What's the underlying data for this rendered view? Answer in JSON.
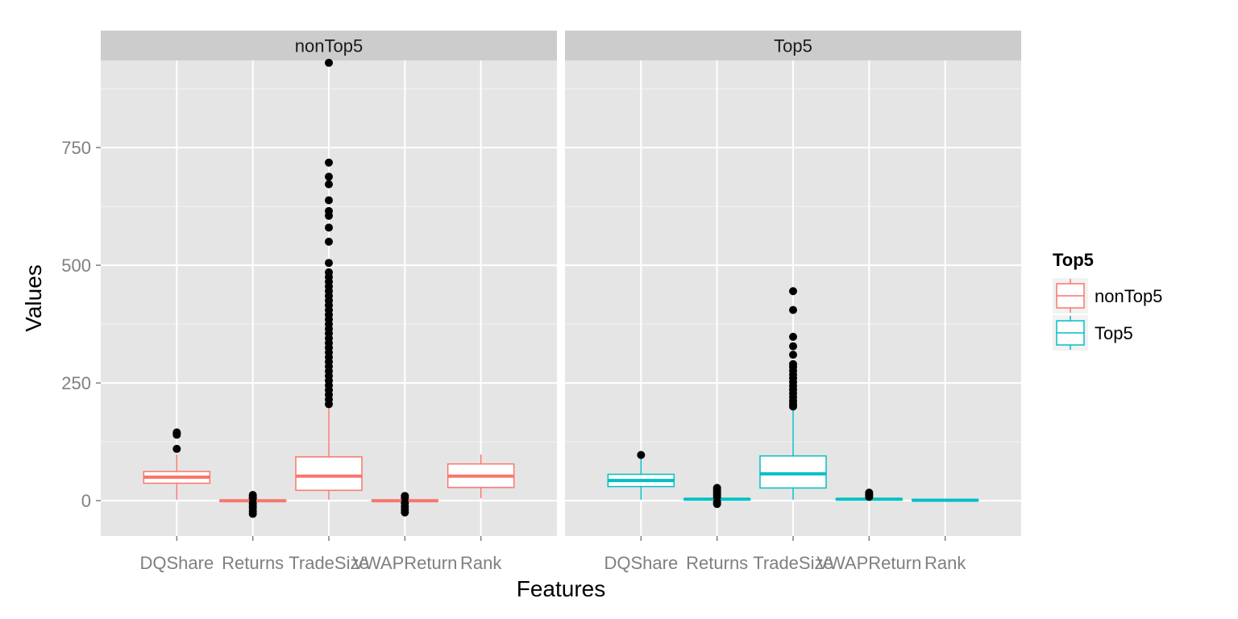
{
  "chart_data": {
    "type": "boxplot",
    "xlabel": "Features",
    "ylabel": "Values",
    "ylim": [
      -75,
      935
    ],
    "y_ticks": [
      0,
      250,
      500,
      750
    ],
    "grid": true,
    "categories": [
      "DQShare",
      "Returns",
      "TradeSize",
      "VWAPReturn",
      "Rank"
    ],
    "legend": {
      "title": "Top5",
      "position": "right",
      "entries": [
        {
          "label": "nonTop5",
          "color": "#F8766D"
        },
        {
          "label": "Top5",
          "color": "#00BFC4"
        }
      ]
    },
    "panels": [
      {
        "strip": "nonTop5",
        "color": "#F8766D",
        "boxes": [
          {
            "category": "DQShare",
            "min": 2,
            "q1": 37,
            "median": 50,
            "q3": 62,
            "max": 98,
            "outliers": [
              110,
              140,
              143,
              145
            ]
          },
          {
            "category": "Returns",
            "min": -3,
            "q1": -1,
            "median": 0,
            "q3": 1,
            "max": 3,
            "outliers": [
              12,
              8,
              5,
              -5,
              -10,
              -15,
              -22,
              -28
            ]
          },
          {
            "category": "TradeSize",
            "min": 2,
            "q1": 22,
            "median": 52,
            "q3": 93,
            "max": 200,
            "outliers": [
              205,
              215,
              225,
              235,
              245,
              255,
              265,
              275,
              285,
              295,
              305,
              315,
              325,
              335,
              345,
              355,
              365,
              375,
              385,
              395,
              405,
              415,
              425,
              435,
              445,
              455,
              465,
              475,
              485,
              505,
              550,
              580,
              605,
              615,
              638,
              672,
              688,
              718,
              930
            ]
          },
          {
            "category": "VWAPReturn",
            "min": -3,
            "q1": -1,
            "median": 0,
            "q3": 1,
            "max": 3,
            "outliers": [
              10,
              6,
              -5,
              -12,
              -18,
              -25
            ]
          },
          {
            "category": "Rank",
            "min": 5,
            "q1": 28,
            "median": 52,
            "q3": 78,
            "max": 98,
            "outliers": []
          }
        ]
      },
      {
        "strip": "Top5",
        "color": "#00BFC4",
        "boxes": [
          {
            "category": "DQShare",
            "min": 2,
            "q1": 30,
            "median": 43,
            "q3": 56,
            "max": 90,
            "outliers": [
              97
            ]
          },
          {
            "category": "Returns",
            "min": 0,
            "q1": 2,
            "median": 3,
            "q3": 4,
            "max": 6,
            "outliers": [
              8,
              12,
              16,
              20,
              24,
              27,
              -3,
              -7
            ]
          },
          {
            "category": "TradeSize",
            "min": 2,
            "q1": 27,
            "median": 57,
            "q3": 95,
            "max": 195,
            "outliers": [
              200,
              205,
              212,
              220,
              228,
              236,
              244,
              252,
              260,
              268,
              276,
              284,
              290,
              310,
              328,
              348,
              405,
              445
            ]
          },
          {
            "category": "VWAPReturn",
            "min": 1,
            "q1": 2,
            "median": 3,
            "q3": 4,
            "max": 5,
            "outliers": [
              8,
              11,
              14,
              17
            ]
          },
          {
            "category": "Rank",
            "min": 0,
            "q1": 1,
            "median": 1,
            "q3": 2,
            "max": 3,
            "outliers": []
          }
        ]
      }
    ]
  }
}
